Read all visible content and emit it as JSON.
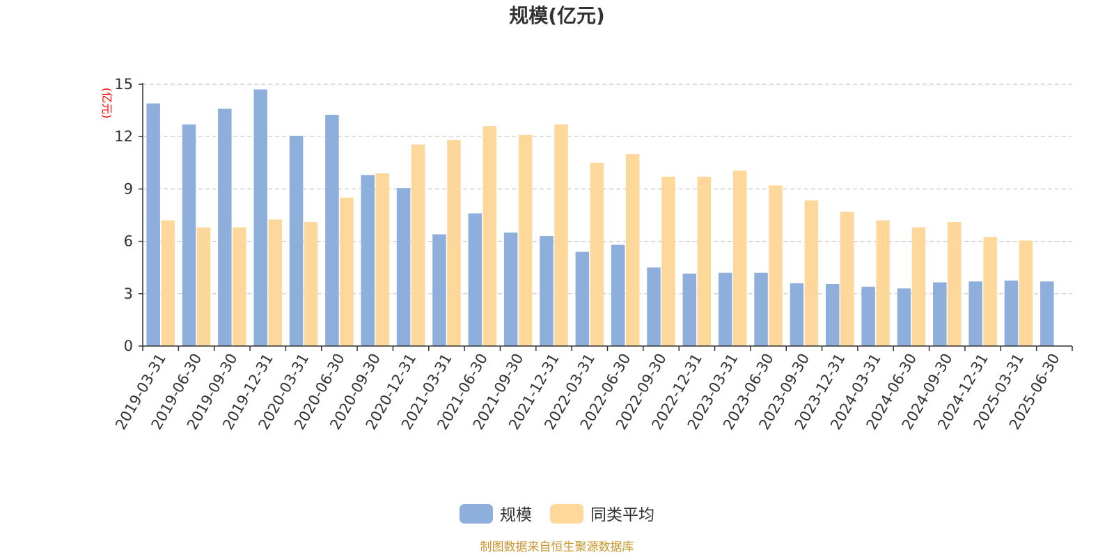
{
  "chart_data": {
    "type": "bar",
    "title": "规模(亿元)",
    "ylabel": "(亿元)",
    "ylim": [
      0,
      15
    ],
    "yticks": [
      0,
      3,
      6,
      9,
      12,
      15
    ],
    "grid": true,
    "legend_position": "bottom-center",
    "categories": [
      "2019-03-31",
      "2019-06-30",
      "2019-09-30",
      "2019-12-31",
      "2020-03-31",
      "2020-06-30",
      "2020-09-30",
      "2020-12-31",
      "2021-03-31",
      "2021-06-30",
      "2021-09-30",
      "2021-12-31",
      "2022-03-31",
      "2022-06-30",
      "2022-09-30",
      "2022-12-31",
      "2023-03-31",
      "2023-06-30",
      "2023-09-30",
      "2023-12-31",
      "2024-03-31",
      "2024-06-30",
      "2024-09-30",
      "2024-12-31",
      "2025-03-31",
      "2025-06-30"
    ],
    "series": [
      {
        "name": "规模",
        "color": "#8eaedb",
        "values": [
          13.9,
          12.7,
          13.6,
          14.7,
          12.05,
          13.25,
          9.8,
          9.05,
          6.4,
          7.6,
          6.5,
          6.3,
          5.4,
          5.8,
          4.5,
          4.15,
          4.2,
          4.2,
          3.6,
          3.55,
          3.4,
          3.3,
          3.65,
          3.7,
          3.75,
          3.7
        ]
      },
      {
        "name": "同类平均",
        "color": "#fed89b",
        "values": [
          7.2,
          6.8,
          6.8,
          7.25,
          7.1,
          8.5,
          9.9,
          11.55,
          11.8,
          12.6,
          12.1,
          12.7,
          10.5,
          11.0,
          9.7,
          9.7,
          10.05,
          9.2,
          8.35,
          7.7,
          7.2,
          6.8,
          7.1,
          6.25,
          6.05,
          null
        ]
      }
    ]
  },
  "footer": {
    "source": "制图数据来自恒生聚源数据库"
  }
}
